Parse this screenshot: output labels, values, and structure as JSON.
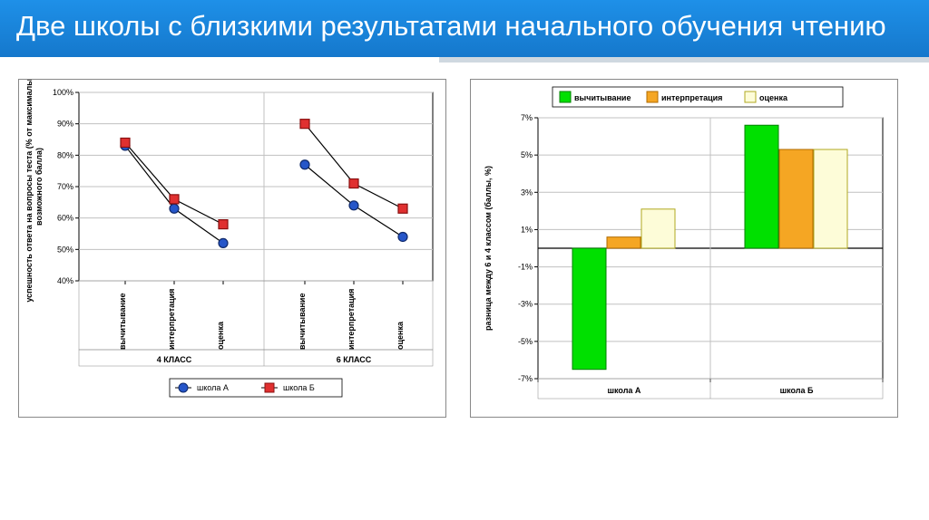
{
  "header": {
    "title": "Две школы с близкими результатами начального обучения чтению"
  },
  "palette": {
    "header_top": "#1e90e8",
    "header_bottom": "#1578cc",
    "border": "#888888",
    "grid": "#c0c0c0",
    "plot_bg": "#ffffff",
    "text": "#000000",
    "accent_shadow": "#cfd8e0"
  },
  "chart_left": {
    "type": "line",
    "ylabel_line1": "успешность ответа на вопросы теста (% от максимально",
    "ylabel_line2": "возможного балла)",
    "y_min": 40,
    "y_max": 100,
    "y_step": 10,
    "y_suffix": "%",
    "groups": [
      {
        "label": "4 КЛАСС",
        "categories": [
          "вычитывание",
          "интерпретация",
          "оценка"
        ]
      },
      {
        "label": "6 КЛАСС",
        "categories": [
          "вычитывание",
          "интерпретация",
          "оценка"
        ]
      }
    ],
    "series": [
      {
        "name": "школа А",
        "marker": "circle",
        "marker_fill": "#2656c9",
        "marker_stroke": "#102a6b",
        "line_color": "#000000",
        "values": [
          [
            83,
            63,
            52
          ],
          [
            77,
            64,
            54
          ]
        ]
      },
      {
        "name": "школа Б",
        "marker": "square",
        "marker_fill": "#e03030",
        "marker_stroke": "#8a1010",
        "line_color": "#000000",
        "values": [
          [
            84,
            66,
            58
          ],
          [
            90,
            71,
            63
          ]
        ]
      }
    ],
    "label_fontsize": 9,
    "tick_fontsize": 9,
    "marker_size": 8
  },
  "chart_right": {
    "type": "bar",
    "ylabel": "разница между 6 и 4 классом (баллы, %)",
    "y_min": -7,
    "y_max": 7,
    "y_step": 2,
    "y_suffix": "%",
    "categories": [
      "школа А",
      "школа Б"
    ],
    "series": [
      {
        "name": "вычитывание",
        "fill": "#00e000",
        "stroke": "#008000",
        "values": [
          -6.5,
          6.6
        ]
      },
      {
        "name": "интерпретация",
        "fill": "#f5a623",
        "stroke": "#b06b00",
        "values": [
          0.6,
          5.3
        ]
      },
      {
        "name": "оценка",
        "fill": "#fdfcd8",
        "stroke": "#b0a820",
        "values": [
          2.1,
          5.3
        ]
      }
    ],
    "bar_gap": 0,
    "bar_group_gap": 0.4,
    "label_fontsize": 9,
    "tick_fontsize": 9
  }
}
